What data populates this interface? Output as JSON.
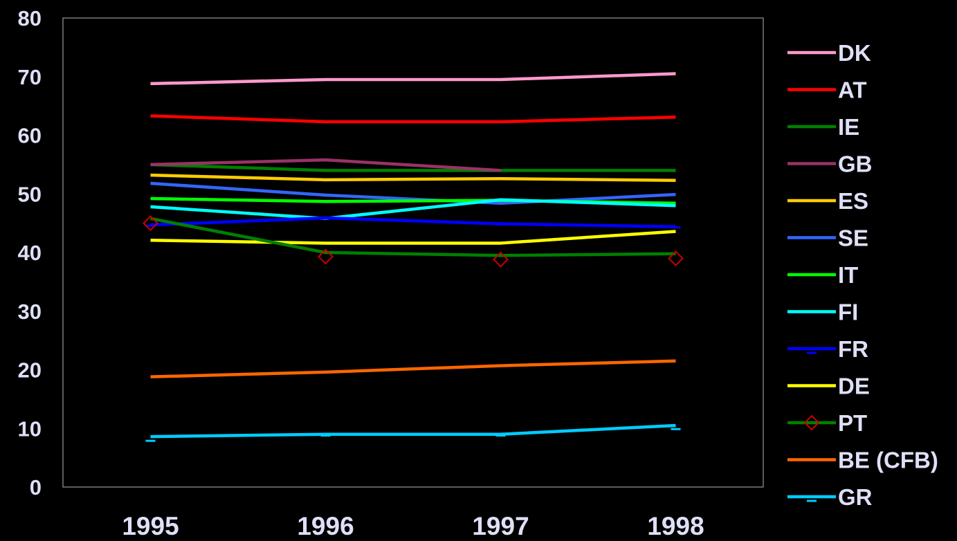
{
  "chart_data": {
    "type": "line",
    "title": "",
    "xlabel": "",
    "ylabel": "",
    "categories": [
      "1995",
      "1996",
      "1997",
      "1998"
    ],
    "ylim": [
      0,
      80
    ],
    "yticks": [
      "0",
      "10",
      "20",
      "30",
      "40",
      "50",
      "60",
      "70",
      "80"
    ],
    "grid": false,
    "legend": "right",
    "series": [
      {
        "name": "DK",
        "values": [
          68.8,
          69.5,
          69.5,
          70.5
        ],
        "color": "#ff99cc",
        "marker": "none"
      },
      {
        "name": "AT",
        "values": [
          63.3,
          62.3,
          62.3,
          63.1
        ],
        "color": "#ff0000",
        "marker": "none"
      },
      {
        "name": "IE",
        "values": [
          55.0,
          54.0,
          54.0,
          54.0
        ],
        "color": "#008000",
        "marker": "none"
      },
      {
        "name": "GB",
        "values": [
          55.0,
          55.8,
          54.0,
          null
        ],
        "color": "#993366",
        "marker": "none"
      },
      {
        "name": "ES",
        "values": [
          53.2,
          52.4,
          52.6,
          52.3
        ],
        "color": "#ffcc00",
        "marker": "none"
      },
      {
        "name": "SE",
        "values": [
          51.8,
          49.8,
          48.4,
          49.9
        ],
        "color": "#3366ff",
        "marker": "none"
      },
      {
        "name": "IT",
        "values": [
          49.2,
          48.7,
          48.9,
          48.4
        ],
        "color": "#00ff00",
        "marker": "none"
      },
      {
        "name": "FI",
        "values": [
          47.8,
          45.8,
          49.0,
          48.0
        ],
        "color": "#00ffff",
        "marker": "none"
      },
      {
        "name": "FR",
        "values": [
          44.7,
          45.9,
          44.9,
          44.4
        ],
        "color": "#0000ff",
        "marker": "dash"
      },
      {
        "name": "DE",
        "values": [
          42.1,
          41.6,
          41.6,
          43.6
        ],
        "color": "#ffff00",
        "marker": "none"
      },
      {
        "name": "PT",
        "values": [
          45.8,
          40.0,
          39.5,
          39.8
        ],
        "color": "#008000",
        "marker": "diamond",
        "marker_values": [
          45.0,
          39.3,
          38.8,
          39.0
        ],
        "marker_color": "#cc0000"
      },
      {
        "name": "BE (CFB)",
        "values": [
          18.8,
          19.6,
          20.7,
          21.5
        ],
        "color": "#ff6600",
        "marker": "none"
      },
      {
        "name": "GR",
        "values": [
          8.6,
          9.0,
          9.0,
          10.5
        ],
        "color": "#00ccff",
        "marker": "dash",
        "marker_values": [
          8.0,
          8.9,
          8.9,
          10.0
        ]
      }
    ]
  }
}
